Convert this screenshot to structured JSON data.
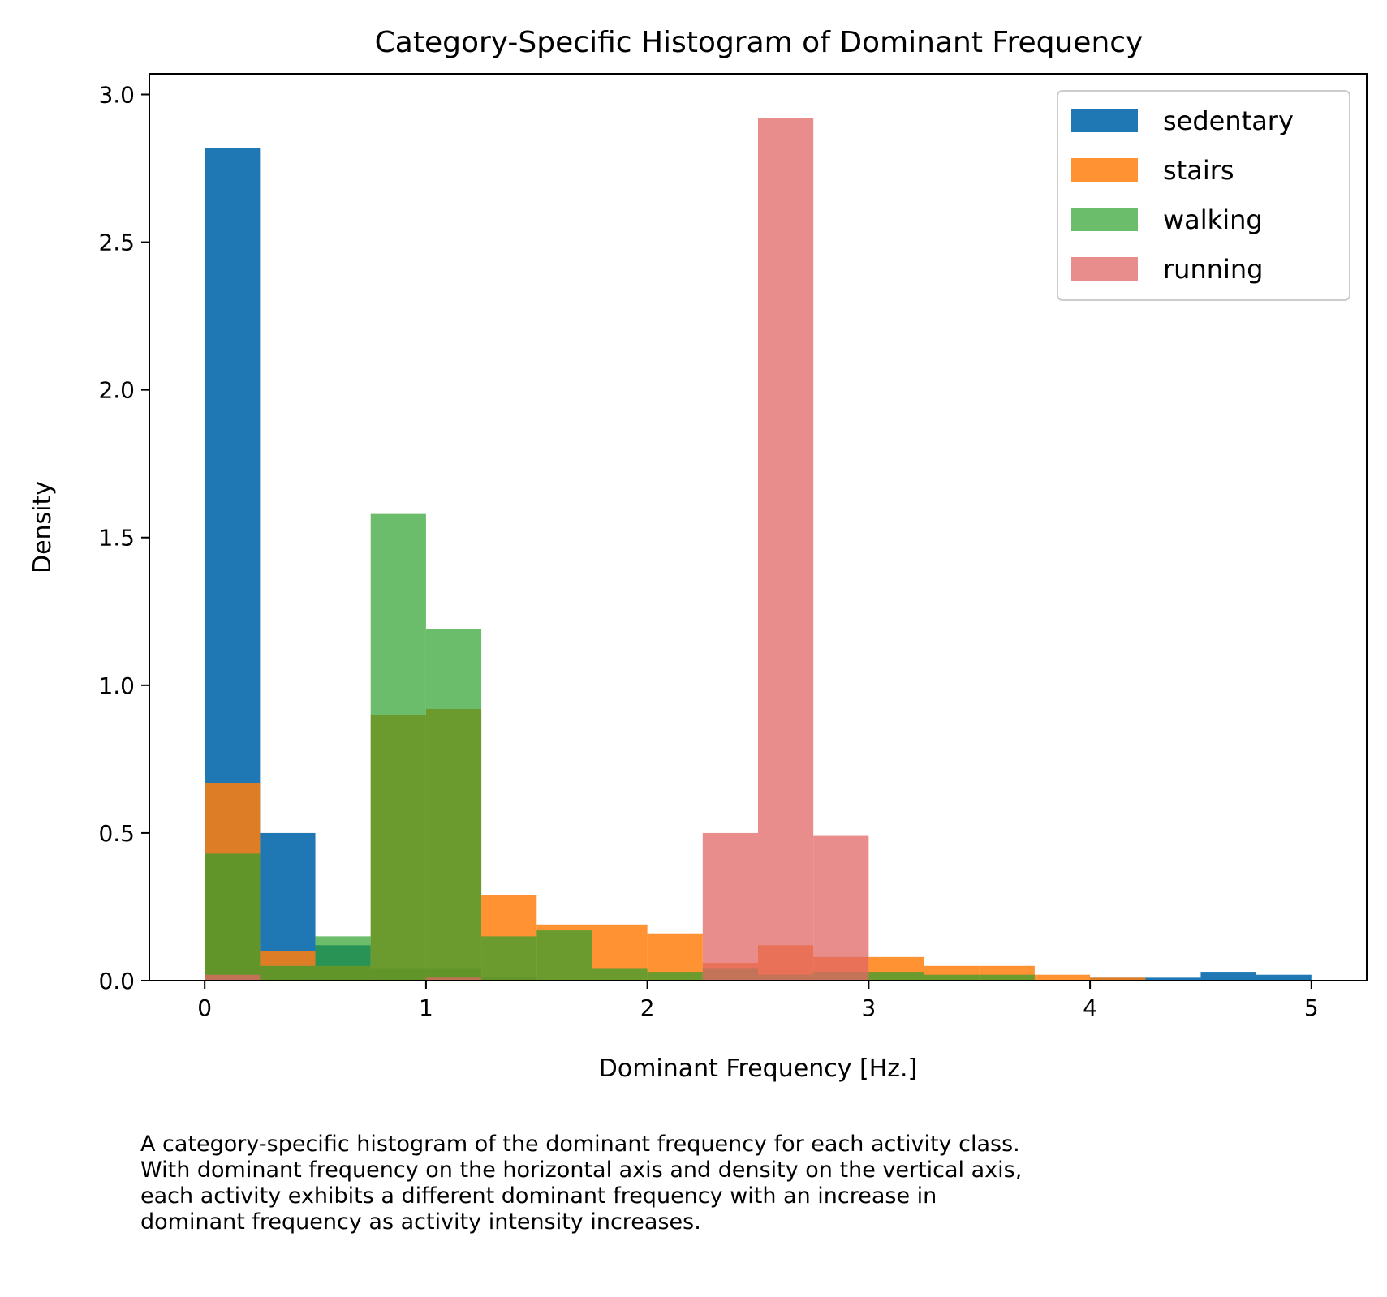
{
  "chart_data": {
    "type": "bar",
    "title": "Category-Specific Histogram of Dominant Frequency",
    "xlabel": "Dominant Frequency [Hz.]",
    "ylabel": "Density",
    "xlim": [
      -0.25,
      5.25
    ],
    "ylim": [
      0,
      3.07
    ],
    "xticks": [
      "0",
      "1",
      "2",
      "3",
      "4",
      "5"
    ],
    "yticks": [
      "0.0",
      "0.5",
      "1.0",
      "1.5",
      "2.0",
      "2.5",
      "3.0"
    ],
    "grid": false,
    "legend_position": "top-right",
    "bin_edges": [
      0,
      0.25,
      0.5,
      0.75,
      1.0,
      1.25,
      1.5,
      1.75,
      2.0,
      2.25,
      2.5,
      2.75,
      3.0,
      3.25,
      3.5,
      3.75,
      4.0,
      4.25,
      4.5,
      4.75,
      5.0
    ],
    "series": [
      {
        "name": "sedentary",
        "color": "#1f77b4",
        "opacity": 1.0,
        "values": [
          2.82,
          0.5,
          0.12,
          0.04,
          0.04,
          0.01,
          0.0,
          0.0,
          0.0,
          0.0,
          0.0,
          0.0,
          0.0,
          0.0,
          0.0,
          0.0,
          0.01,
          0.01,
          0.03,
          0.02
        ]
      },
      {
        "name": "stairs",
        "color": "#ff7f0e",
        "opacity": 0.85,
        "values": [
          0.67,
          0.1,
          0.05,
          0.9,
          0.92,
          0.29,
          0.19,
          0.19,
          0.16,
          0.06,
          0.12,
          0.08,
          0.08,
          0.05,
          0.05,
          0.02,
          0.01,
          0.0,
          0.0,
          0.0
        ]
      },
      {
        "name": "walking",
        "color": "#2ca02c",
        "opacity": 0.7,
        "values": [
          0.43,
          0.05,
          0.15,
          1.58,
          1.19,
          0.15,
          0.17,
          0.04,
          0.03,
          0.04,
          0.02,
          0.03,
          0.03,
          0.02,
          0.02,
          0.0,
          0.0,
          0.0,
          0.0,
          0.0
        ]
      },
      {
        "name": "running",
        "color": "#e06666",
        "opacity": 0.75,
        "values": [
          0.02,
          0.0,
          0.0,
          0.0,
          0.01,
          0.0,
          0.0,
          0.0,
          0.0,
          0.5,
          2.92,
          0.49,
          0.0,
          0.0,
          0.0,
          0.0,
          0.0,
          0.0,
          0.0,
          0.0
        ]
      }
    ]
  },
  "caption": "A category-specific histogram of the dominant frequency for each activity class.\nWith dominant frequency on the horizontal axis and density on the vertical axis,\neach activity exhibits a different dominant frequency with an increase in\ndominant frequency as activity intensity increases."
}
